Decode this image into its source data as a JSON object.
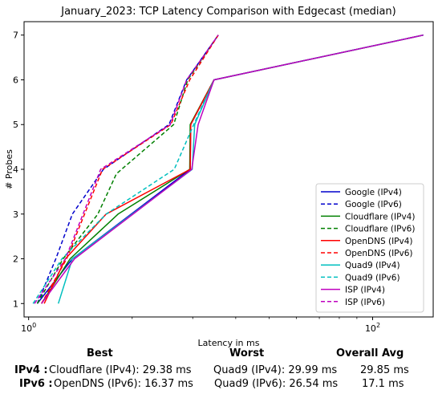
{
  "chart_data": {
    "type": "line",
    "title": "January_2023: TCP Latency Comparison with Edgecast (median)",
    "xlabel": "Latency in ms",
    "ylabel": "# Probes",
    "xscale": "log",
    "xlim": [
      9.7,
      150
    ],
    "ylim": [
      0.7,
      7.3
    ],
    "xticks": [
      {
        "value": 10,
        "base": "10",
        "exp": "0"
      },
      {
        "value": 100,
        "base": "10",
        "exp": "2"
      }
    ],
    "yticks": [
      1,
      2,
      3,
      4,
      5,
      6,
      7
    ],
    "grid": false,
    "legend": "lower-right",
    "series": [
      {
        "name": "Google (IPv4)",
        "color": "#0000cc",
        "dash": "solid",
        "x": [
          10.6,
          13.4,
          29.5,
          29.6,
          34.6,
          140.5
        ],
        "y": [
          1,
          2,
          4,
          5,
          6,
          7
        ]
      },
      {
        "name": "Google (IPv6)",
        "color": "#0000cc",
        "dash": "dashed",
        "x": [
          10.6,
          12.0,
          13.4,
          16.5,
          25.6,
          28.8,
          35.6
        ],
        "y": [
          1,
          2,
          3,
          4,
          5,
          6,
          7
        ]
      },
      {
        "name": "Cloudflare (IPv4)",
        "color": "#008000",
        "dash": "solid",
        "x": [
          10.9,
          13.2,
          18.2,
          29.4,
          29.5,
          34.6,
          140.5
        ],
        "y": [
          1,
          2,
          3,
          4,
          5,
          6,
          7
        ]
      },
      {
        "name": "Cloudflare (IPv6)",
        "color": "#008000",
        "dash": "dashed",
        "x": [
          10.6,
          12.6,
          15.9,
          18.0,
          26.4,
          29.0,
          35.6
        ],
        "y": [
          1,
          2,
          3,
          3.9,
          5,
          6,
          7
        ]
      },
      {
        "name": "OpenDNS (IPv4)",
        "color": "#ff0000",
        "dash": "solid",
        "x": [
          11.1,
          12.8,
          16.8,
          29.5,
          29.6,
          34.6,
          140.5
        ],
        "y": [
          1,
          2,
          3,
          4,
          5,
          6,
          7
        ]
      },
      {
        "name": "OpenDNS (IPv6)",
        "color": "#ff0000",
        "dash": "dashed",
        "x": [
          10.9,
          12.9,
          16.4,
          25.9,
          29.4,
          35.6
        ],
        "y": [
          1,
          2,
          4,
          5,
          6,
          7
        ]
      },
      {
        "name": "Quad9 (IPv4)",
        "color": "#00bfbf",
        "dash": "solid",
        "x": [
          12.2,
          13.4,
          29.9,
          30.4,
          34.6,
          140.5
        ],
        "y": [
          1,
          2,
          4,
          5,
          6,
          7
        ]
      },
      {
        "name": "Quad9 (IPv6)",
        "color": "#00bfbf",
        "dash": "dashed",
        "x": [
          10.3,
          12.5,
          16.8,
          26.5,
          30.2,
          34.6,
          140.5
        ],
        "y": [
          1,
          2,
          3,
          4,
          5,
          6,
          7
        ]
      },
      {
        "name": "ISP (IPv4)",
        "color": "#bf00bf",
        "dash": "solid",
        "x": [
          10.9,
          13.6,
          29.8,
          31.1,
          34.6,
          140.5
        ],
        "y": [
          1,
          2,
          4,
          5,
          6,
          7
        ]
      },
      {
        "name": "ISP (IPv6)",
        "color": "#bf00bf",
        "dash": "dashed",
        "x": [
          10.4,
          12.8,
          16.2,
          25.8,
          28.8,
          35.6
        ],
        "y": [
          1,
          2,
          4,
          5,
          6,
          7
        ]
      }
    ]
  },
  "summary": {
    "headers": {
      "best": "Best",
      "worst": "Worst",
      "avg": "Overall Avg"
    },
    "rows": [
      {
        "label": "IPv4 :",
        "best": "Cloudflare (IPv4): 29.38 ms",
        "worst": "Quad9 (IPv4): 29.99 ms",
        "avg": "29.85 ms"
      },
      {
        "label": "IPv6 :",
        "best": "OpenDNS (IPv6): 16.37 ms",
        "worst": "Quad9 (IPv6): 26.54 ms",
        "avg": "17.1 ms"
      }
    ]
  }
}
